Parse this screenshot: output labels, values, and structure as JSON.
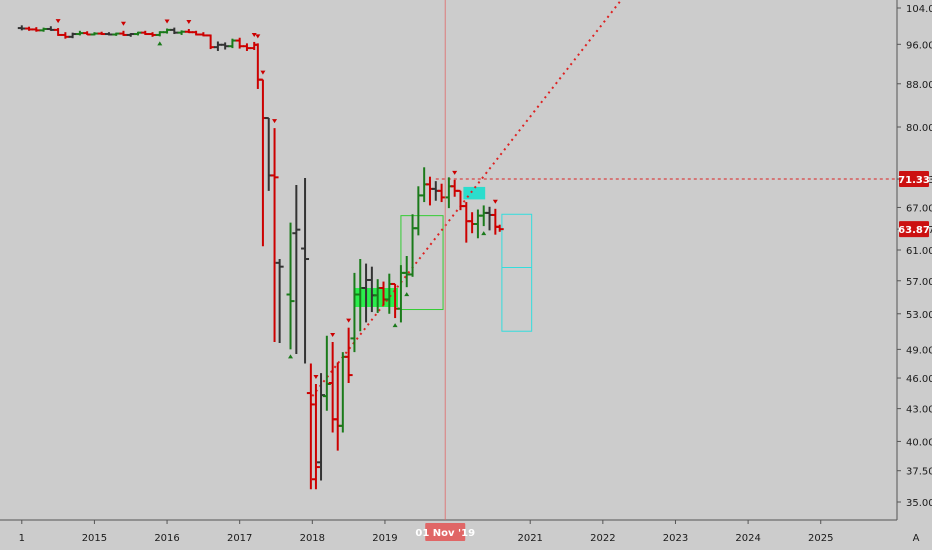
{
  "chart_data": {
    "type": "ohlc",
    "x_axis": {
      "tick_labels": [
        "1",
        "2015",
        "2016",
        "2017",
        "2018",
        "2019",
        "2021",
        "2022",
        "2023",
        "2024",
        "2025"
      ],
      "tick_years": [
        2014.0,
        2015.0,
        2016.0,
        2017.0,
        2018.0,
        2019.0,
        2021.0,
        2022.0,
        2023.0,
        2024.0,
        2025.0
      ],
      "range": [
        2013.7,
        2026.05
      ]
    },
    "y_axis": {
      "scale": "log",
      "tick_labels": [
        "104.00",
        "96.00",
        "88.00",
        "80.00",
        "71.33",
        "67.00",
        "63.87",
        "61.00",
        "57.00",
        "53.00",
        "49.00",
        "46.00",
        "43.00",
        "40.00",
        "37.50",
        "35.00"
      ],
      "tick_values": [
        104,
        96,
        88,
        80,
        71.33,
        67,
        63.87,
        61,
        57,
        53,
        49,
        46,
        43,
        40,
        37.5,
        35
      ],
      "range": [
        33.6,
        108
      ]
    },
    "crosshair": {
      "x": 2019.83,
      "label": "01 Nov '19",
      "color": "#e06666"
    },
    "price_badges": [
      {
        "value": 71.33,
        "label": "71.33",
        "color": "#cc1111"
      },
      {
        "value": 63.87,
        "label": "63.87",
        "color": "#cc1111"
      }
    ],
    "horizontal_level": {
      "value": 71.33,
      "from_x": 2019.7,
      "color": "#dd2222",
      "style": "dashed"
    },
    "trend_line": {
      "points": [
        [
          2018.0,
          44.2
        ],
        [
          2022.35,
          108
        ]
      ],
      "color": "#dd2222",
      "style": "dotted"
    },
    "boxes": [
      {
        "x0": 2019.22,
        "x1": 2019.8,
        "y0": 53.5,
        "y1": 65.8,
        "stroke": "#33cc33",
        "fill": "none"
      },
      {
        "x0": 2020.61,
        "x1": 2021.02,
        "y0": 51.0,
        "y1": 66.0,
        "stroke": "#33dddd",
        "fill": "none",
        "mid": 58.7
      },
      {
        "x0": 2018.58,
        "x1": 2019.18,
        "y0": 53.8,
        "y1": 56.1,
        "stroke": "none",
        "fill": "#22ee44"
      },
      {
        "x0": 2020.08,
        "x1": 2020.38,
        "y0": 68.2,
        "y1": 70.1,
        "stroke": "none",
        "fill": "#22ddcc"
      }
    ],
    "colors": {
      "up": "#1a7a1a",
      "down": "#cc0000",
      "neutral": "#333333",
      "up_marker": "#1a7a1a",
      "down_marker": "#cc0000"
    },
    "bars": [
      {
        "x": 2014.0,
        "o": 99.5,
        "h": 100.1,
        "l": 99.0,
        "c": 99.4,
        "k": "n"
      },
      {
        "x": 2014.1,
        "o": 99.4,
        "h": 99.8,
        "l": 98.9,
        "c": 99.2,
        "k": "d"
      },
      {
        "x": 2014.2,
        "o": 99.2,
        "h": 99.7,
        "l": 98.7,
        "c": 99.0,
        "k": "d"
      },
      {
        "x": 2014.3,
        "o": 99.0,
        "h": 99.6,
        "l": 98.7,
        "c": 99.3,
        "k": "u"
      },
      {
        "x": 2014.4,
        "o": 99.3,
        "h": 99.9,
        "l": 98.9,
        "c": 99.1,
        "k": "n"
      },
      {
        "x": 2014.5,
        "o": 99.1,
        "h": 99.5,
        "l": 97.8,
        "c": 98.0,
        "k": "d",
        "m": "d"
      },
      {
        "x": 2014.6,
        "o": 98.0,
        "h": 98.6,
        "l": 97.2,
        "c": 97.6,
        "k": "d"
      },
      {
        "x": 2014.7,
        "o": 97.6,
        "h": 98.5,
        "l": 97.3,
        "c": 98.2,
        "k": "n"
      },
      {
        "x": 2014.8,
        "o": 98.2,
        "h": 98.9,
        "l": 97.9,
        "c": 98.4,
        "k": "u"
      },
      {
        "x": 2014.9,
        "o": 98.4,
        "h": 98.8,
        "l": 98.0,
        "c": 98.1,
        "k": "d"
      },
      {
        "x": 2015.0,
        "o": 98.1,
        "h": 98.6,
        "l": 97.9,
        "c": 98.3,
        "k": "u"
      },
      {
        "x": 2015.1,
        "o": 98.3,
        "h": 98.7,
        "l": 98.0,
        "c": 98.2,
        "k": "d"
      },
      {
        "x": 2015.2,
        "o": 98.2,
        "h": 98.6,
        "l": 97.9,
        "c": 98.1,
        "k": "n"
      },
      {
        "x": 2015.3,
        "o": 98.1,
        "h": 98.5,
        "l": 97.8,
        "c": 98.3,
        "k": "u"
      },
      {
        "x": 2015.4,
        "o": 98.3,
        "h": 98.9,
        "l": 97.8,
        "c": 98.0,
        "k": "d",
        "m": "d"
      },
      {
        "x": 2015.5,
        "o": 98.0,
        "h": 98.4,
        "l": 97.6,
        "c": 98.2,
        "k": "n"
      },
      {
        "x": 2015.6,
        "o": 98.2,
        "h": 98.7,
        "l": 97.9,
        "c": 98.5,
        "k": "u"
      },
      {
        "x": 2015.7,
        "o": 98.5,
        "h": 98.9,
        "l": 98.0,
        "c": 98.2,
        "k": "d"
      },
      {
        "x": 2015.8,
        "o": 98.2,
        "h": 98.6,
        "l": 97.6,
        "c": 98.0,
        "k": "d"
      },
      {
        "x": 2015.9,
        "o": 98.0,
        "h": 98.8,
        "l": 97.7,
        "c": 98.6,
        "k": "u",
        "m": "u"
      },
      {
        "x": 2016.0,
        "o": 98.6,
        "h": 99.4,
        "l": 98.3,
        "c": 99.1,
        "k": "u",
        "m": "d"
      },
      {
        "x": 2016.1,
        "o": 99.1,
        "h": 99.6,
        "l": 98.2,
        "c": 98.5,
        "k": "n"
      },
      {
        "x": 2016.2,
        "o": 98.5,
        "h": 99.0,
        "l": 98.0,
        "c": 98.7,
        "k": "u"
      },
      {
        "x": 2016.3,
        "o": 98.7,
        "h": 99.3,
        "l": 98.4,
        "c": 98.6,
        "k": "d",
        "m": "d"
      },
      {
        "x": 2016.4,
        "o": 98.6,
        "h": 98.9,
        "l": 97.9,
        "c": 98.1,
        "k": "d"
      },
      {
        "x": 2016.5,
        "o": 98.1,
        "h": 98.6,
        "l": 97.7,
        "c": 97.9,
        "k": "d"
      },
      {
        "x": 2016.6,
        "o": 97.9,
        "h": 98.1,
        "l": 95.0,
        "c": 95.4,
        "k": "d"
      },
      {
        "x": 2016.7,
        "o": 95.4,
        "h": 96.6,
        "l": 94.6,
        "c": 95.9,
        "k": "n"
      },
      {
        "x": 2016.8,
        "o": 95.9,
        "h": 96.4,
        "l": 94.9,
        "c": 95.6,
        "k": "n"
      },
      {
        "x": 2016.9,
        "o": 95.6,
        "h": 97.2,
        "l": 95.2,
        "c": 96.8,
        "k": "u"
      },
      {
        "x": 2017.0,
        "o": 96.8,
        "h": 97.4,
        "l": 95.1,
        "c": 95.6,
        "k": "d"
      },
      {
        "x": 2017.1,
        "o": 95.6,
        "h": 96.2,
        "l": 94.6,
        "c": 95.2,
        "k": "d"
      },
      {
        "x": 2017.2,
        "o": 95.2,
        "h": 96.5,
        "l": 94.8,
        "c": 95.9,
        "k": "d",
        "m": "d"
      },
      {
        "x": 2017.25,
        "o": 95.9,
        "h": 96.2,
        "l": 87.0,
        "c": 88.8,
        "k": "d",
        "m": "d"
      },
      {
        "x": 2017.32,
        "o": 88.8,
        "h": 88.2,
        "l": 61.5,
        "c": 81.6,
        "k": "d",
        "m": "d"
      },
      {
        "x": 2017.4,
        "o": 81.6,
        "h": 79.0,
        "l": 69.5,
        "c": 71.9,
        "k": "n"
      },
      {
        "x": 2017.48,
        "o": 71.9,
        "h": 79.8,
        "l": 49.8,
        "c": 71.6,
        "k": "d",
        "m": "d"
      },
      {
        "x": 2017.55,
        "o": 59.3,
        "h": 59.8,
        "l": 49.7,
        "c": 58.8,
        "k": "n"
      },
      {
        "x": 2017.7,
        "o": 55.3,
        "h": 64.8,
        "l": 49.0,
        "c": 54.5,
        "k": "u",
        "m": "u"
      },
      {
        "x": 2017.78,
        "o": 63.3,
        "h": 70.4,
        "l": 48.5,
        "c": 63.8,
        "k": "n"
      },
      {
        "x": 2017.9,
        "o": 61.2,
        "h": 71.5,
        "l": 47.5,
        "c": 59.8,
        "k": "n"
      },
      {
        "x": 2017.98,
        "o": 44.5,
        "h": 47.5,
        "l": 36.0,
        "c": 43.4,
        "k": "d"
      },
      {
        "x": 2018.05,
        "o": 36.8,
        "h": 45.4,
        "l": 36.0,
        "c": 37.8,
        "k": "d",
        "m": "d"
      },
      {
        "x": 2018.12,
        "o": 38.2,
        "h": 46.5,
        "l": 36.7,
        "c": 44.3,
        "k": "n"
      },
      {
        "x": 2018.2,
        "o": 44.2,
        "h": 50.5,
        "l": 42.8,
        "c": 45.4,
        "k": "u"
      },
      {
        "x": 2018.28,
        "o": 45.5,
        "h": 49.8,
        "l": 40.8,
        "c": 42.0,
        "k": "d",
        "m": "d"
      },
      {
        "x": 2018.35,
        "o": 42.0,
        "h": 47.6,
        "l": 39.2,
        "c": 41.4,
        "k": "d"
      },
      {
        "x": 2018.42,
        "o": 41.4,
        "h": 48.7,
        "l": 40.8,
        "c": 48.2,
        "k": "u"
      },
      {
        "x": 2018.5,
        "o": 48.2,
        "h": 51.4,
        "l": 45.5,
        "c": 46.3,
        "k": "d",
        "m": "d"
      },
      {
        "x": 2018.58,
        "o": 50.2,
        "h": 58.0,
        "l": 48.7,
        "c": 55.3,
        "k": "u"
      },
      {
        "x": 2018.66,
        "o": 55.3,
        "h": 59.8,
        "l": 51.0,
        "c": 56.1,
        "k": "u"
      },
      {
        "x": 2018.74,
        "o": 56.1,
        "h": 59.2,
        "l": 52.0,
        "c": 57.1,
        "k": "n"
      },
      {
        "x": 2018.82,
        "o": 57.1,
        "h": 58.8,
        "l": 53.2,
        "c": 55.2,
        "k": "n"
      },
      {
        "x": 2018.9,
        "o": 55.2,
        "h": 57.2,
        "l": 53.1,
        "c": 56.1,
        "k": "u"
      },
      {
        "x": 2018.98,
        "o": 56.1,
        "h": 56.9,
        "l": 54.0,
        "c": 54.7,
        "k": "d"
      },
      {
        "x": 2019.06,
        "o": 54.7,
        "h": 57.9,
        "l": 53.0,
        "c": 56.6,
        "k": "u"
      },
      {
        "x": 2019.14,
        "o": 56.6,
        "h": 56.2,
        "l": 52.5,
        "c": 53.6,
        "k": "d",
        "m": "u"
      },
      {
        "x": 2019.22,
        "o": 53.6,
        "h": 59.0,
        "l": 52.0,
        "c": 58.0,
        "k": "u"
      },
      {
        "x": 2019.3,
        "o": 58.0,
        "h": 60.2,
        "l": 56.2,
        "c": 57.8,
        "k": "u",
        "m": "u"
      },
      {
        "x": 2019.38,
        "o": 57.8,
        "h": 66.0,
        "l": 57.5,
        "c": 64.0,
        "k": "u"
      },
      {
        "x": 2019.46,
        "o": 64.0,
        "h": 70.2,
        "l": 63.0,
        "c": 68.8,
        "k": "u"
      },
      {
        "x": 2019.54,
        "o": 68.8,
        "h": 73.2,
        "l": 67.8,
        "c": 70.5,
        "k": "u"
      },
      {
        "x": 2019.62,
        "o": 70.5,
        "h": 71.7,
        "l": 67.3,
        "c": 69.8,
        "k": "d"
      },
      {
        "x": 2019.7,
        "o": 69.8,
        "h": 71.0,
        "l": 68.0,
        "c": 69.5,
        "k": "n"
      },
      {
        "x": 2019.78,
        "o": 69.5,
        "h": 70.6,
        "l": 67.8,
        "c": 68.5,
        "k": "d"
      },
      {
        "x": 2019.88,
        "o": 68.5,
        "h": 71.6,
        "l": 66.9,
        "c": 70.2,
        "k": "u"
      },
      {
        "x": 2019.96,
        "o": 70.2,
        "h": 71.2,
        "l": 68.6,
        "c": 69.5,
        "k": "d",
        "m": "d"
      },
      {
        "x": 2020.04,
        "o": 69.5,
        "h": 69.1,
        "l": 66.6,
        "c": 67.2,
        "k": "d"
      },
      {
        "x": 2020.12,
        "o": 67.2,
        "h": 67.8,
        "l": 62.0,
        "c": 65.0,
        "k": "d"
      },
      {
        "x": 2020.2,
        "o": 65.0,
        "h": 66.3,
        "l": 63.3,
        "c": 64.6,
        "k": "d"
      },
      {
        "x": 2020.28,
        "o": 64.6,
        "h": 66.7,
        "l": 62.6,
        "c": 65.8,
        "k": "u"
      },
      {
        "x": 2020.36,
        "o": 65.8,
        "h": 67.3,
        "l": 64.3,
        "c": 66.2,
        "k": "u",
        "m": "u"
      },
      {
        "x": 2020.44,
        "o": 66.2,
        "h": 67.1,
        "l": 63.7,
        "c": 65.9,
        "k": "n"
      },
      {
        "x": 2020.52,
        "o": 65.9,
        "h": 66.8,
        "l": 63.1,
        "c": 64.2,
        "k": "d",
        "m": "d"
      },
      {
        "x": 2020.58,
        "o": 64.2,
        "h": 64.5,
        "l": 63.5,
        "c": 63.87,
        "k": "d"
      }
    ]
  },
  "ui": {
    "corner_label": "A"
  }
}
